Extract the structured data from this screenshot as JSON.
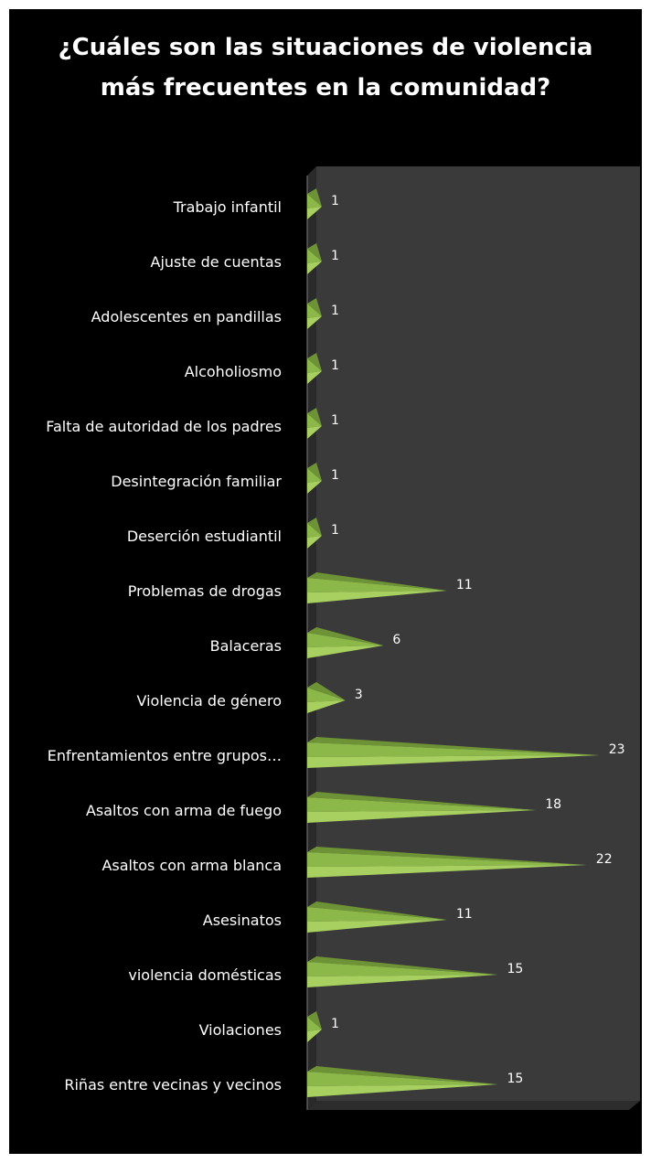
{
  "chart_data": {
    "type": "bar",
    "title": "¿Cuáles son las situaciones de violencia\nmás frecuentes en la comunidad?",
    "xlabel": "",
    "ylabel": "",
    "orientation": "horizontal",
    "bar_shape": "3d-cone",
    "grid": false,
    "legend": "none",
    "xlim": [
      0,
      23
    ],
    "categories": [
      "Trabajo infantil",
      "Ajuste de cuentas",
      "Adolescentes en pandillas",
      "Alcoholiosmo",
      "Falta de autoridad de los padres",
      "Desintegración familiar",
      "Deserción estudiantil",
      "Problemas de drogas",
      "Balaceras",
      "Violencia de género",
      "Enfrentamientos entre grupos…",
      "Asaltos con arma de fuego",
      "Asaltos con arma blanca",
      "Asesinatos",
      "violencia domésticas",
      "Violaciones",
      "Riñas entre vecinas y vecinos"
    ],
    "values": [
      1,
      1,
      1,
      1,
      1,
      1,
      1,
      11,
      6,
      3,
      23,
      18,
      22,
      11,
      15,
      1,
      15
    ],
    "colors": {
      "background": "#000000",
      "plot_floor": "#3a3a3a",
      "plot_wall": "#2a2a2a",
      "bar_light": "#a8d060",
      "bar_mid": "#8cb84a",
      "bar_dark": "#6e9236",
      "text": "#ffffff"
    }
  }
}
